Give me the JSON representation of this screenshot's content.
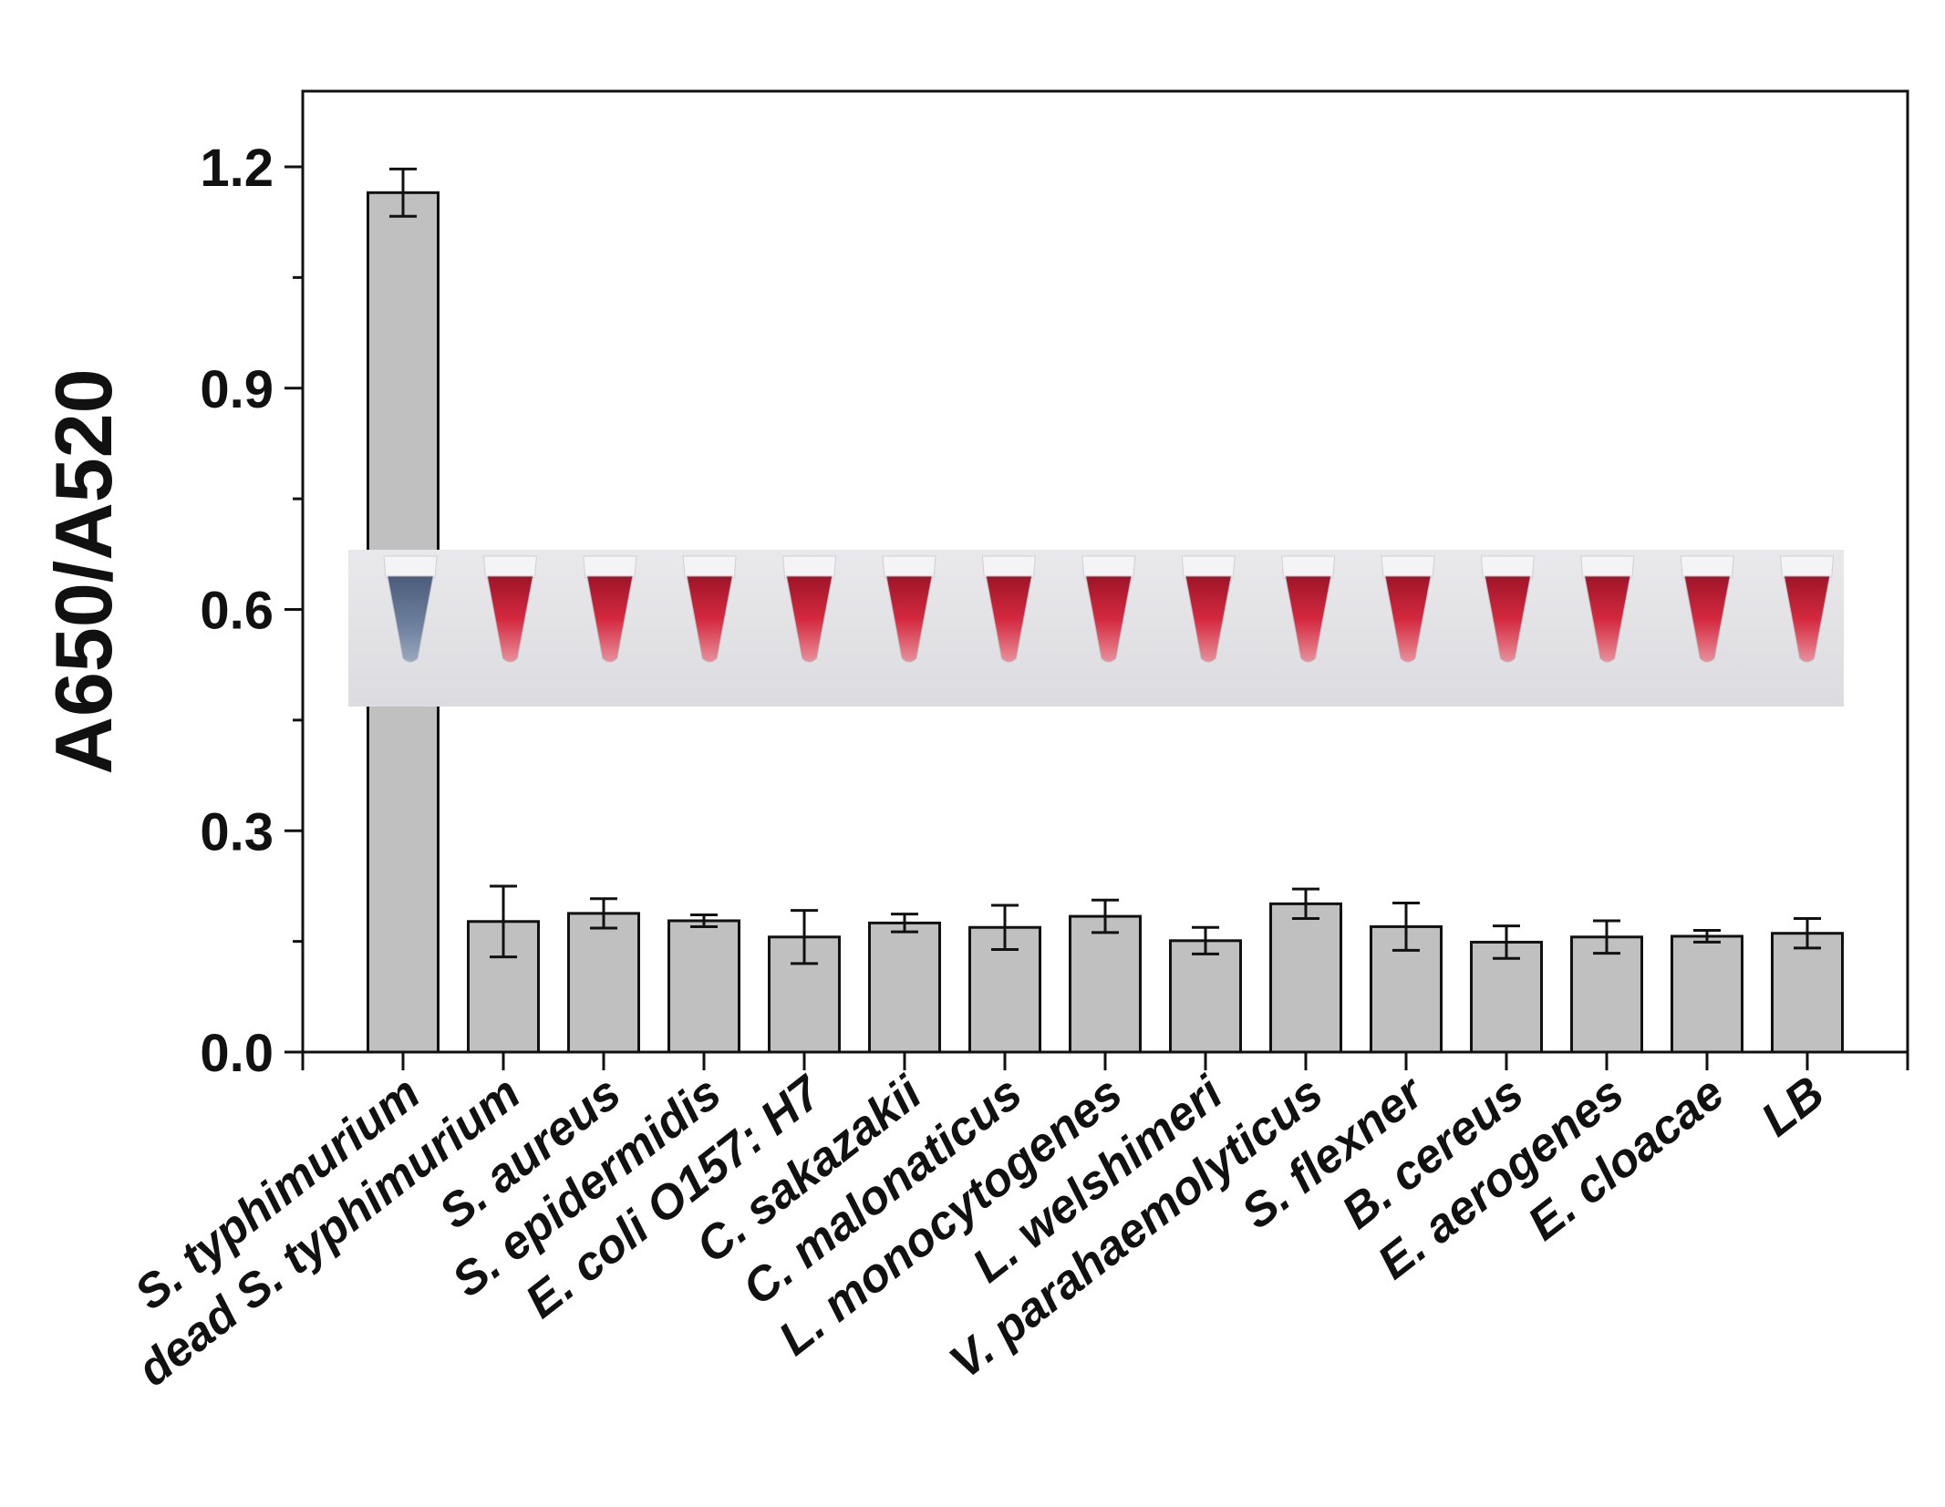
{
  "chart_data": {
    "type": "bar",
    "title": "",
    "xlabel": "",
    "ylabel": "A650/A520",
    "ylim": [
      0,
      1.3
    ],
    "yticks": [
      "0.0",
      "0.3",
      "0.6",
      "0.9",
      "1.2"
    ],
    "ytick_values": [
      0,
      0.3,
      0.6,
      0.9,
      1.2
    ],
    "grid": false,
    "legend": "none",
    "categories": [
      "S. typhimurium",
      "dead S. typhimurium",
      "S. aureus",
      "S. epidermidis",
      "E. coli O157: H7",
      "C. sakazakii",
      "C. malonaticus",
      "L. monocytogenes",
      "L. welshimeri",
      "V. parahaemolyticus",
      "S. flexner",
      "B. cereus",
      "E. aerogenes",
      "E. cloacae",
      "LB"
    ],
    "values": [
      1.165,
      0.177,
      0.188,
      0.178,
      0.156,
      0.175,
      0.169,
      0.184,
      0.151,
      0.201,
      0.17,
      0.149,
      0.156,
      0.157,
      0.161
    ],
    "errors": [
      0.032,
      0.048,
      0.02,
      0.008,
      0.036,
      0.012,
      0.03,
      0.022,
      0.018,
      0.02,
      0.032,
      0.022,
      0.022,
      0.008,
      0.02
    ],
    "bar_color": "#c0c0c0",
    "inset_photo": {
      "description_colors": {
        "blue_tube": "#5d6f8c",
        "red_tube": "#c8283c",
        "background": "#e6e6ea"
      }
    }
  }
}
